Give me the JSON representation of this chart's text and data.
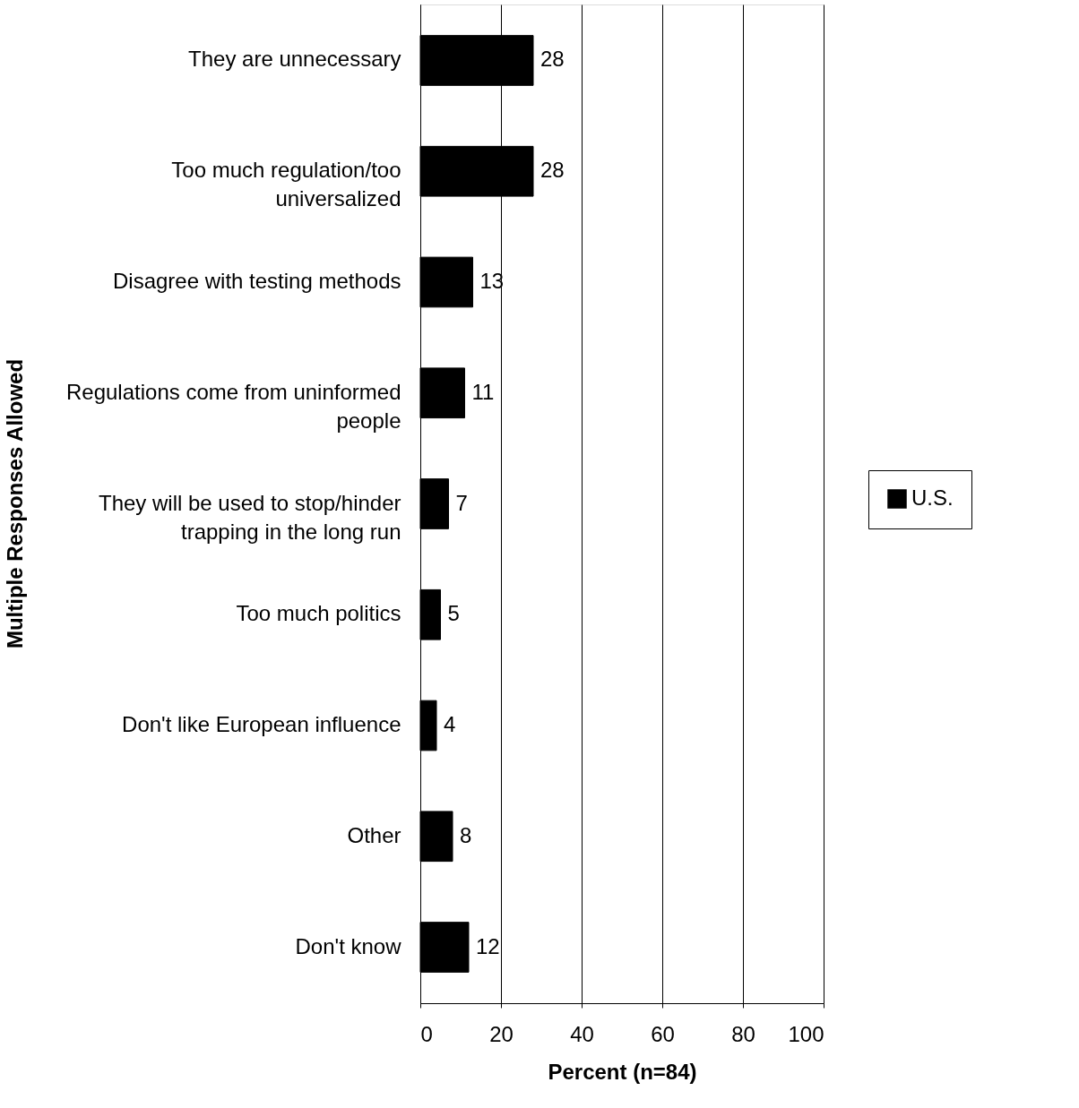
{
  "chart_data": {
    "type": "bar",
    "orientation": "horizontal",
    "xlabel": "Percent (n=84)",
    "ylabel": "Multiple Responses Allowed",
    "categories": [
      "They are unnecessary",
      "Too much regulation/too universalized",
      "Disagree with testing methods",
      "Regulations come from uninformed people",
      "They will be used to stop/hinder trapping in the long run",
      "Too much politics",
      "Don't like European influence",
      "Other",
      "Don't know"
    ],
    "series": [
      {
        "name": "U.S.",
        "color": "#000000",
        "values": [
          28,
          28,
          13,
          11,
          7,
          5,
          4,
          8,
          12
        ]
      }
    ],
    "xlim": [
      0,
      100
    ],
    "xticks": [
      0,
      20,
      40,
      60,
      80,
      100
    ],
    "grid": "x",
    "legend": "right",
    "data_labels": true
  }
}
